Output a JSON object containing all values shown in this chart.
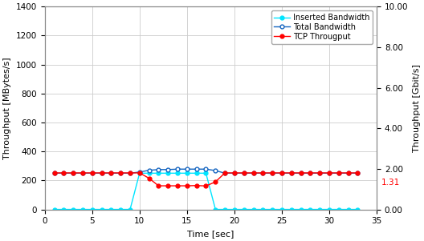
{
  "title": "",
  "xlabel": "Time [sec]",
  "ylabel_left": "Throughput [MBytes/s]",
  "ylabel_right": "Throughput [Gbit/s]",
  "xlim": [
    0,
    35
  ],
  "ylim_left": [
    0,
    1400
  ],
  "ylim_right": [
    0,
    10.0
  ],
  "yticks_left": [
    0,
    200,
    400,
    600,
    800,
    1000,
    1200,
    1400
  ],
  "yticks_right": [
    0.0,
    2.0,
    4.0,
    6.0,
    8.0,
    10.0
  ],
  "xticks": [
    0,
    5,
    10,
    15,
    20,
    25,
    30,
    35
  ],
  "annotation_value": "1.31",
  "annotation_color": "#ff0000",
  "inserted_bw_x": [
    1,
    2,
    3,
    4,
    5,
    6,
    7,
    8,
    9,
    10,
    11,
    12,
    13,
    14,
    15,
    16,
    17,
    18,
    19,
    20,
    21,
    22,
    23,
    24,
    25,
    26,
    27,
    28,
    29,
    30,
    31,
    32,
    33
  ],
  "inserted_bw_y": [
    0,
    0,
    0,
    0,
    0,
    0,
    0,
    0,
    0,
    250,
    250,
    250,
    250,
    250,
    250,
    250,
    250,
    0,
    0,
    0,
    0,
    0,
    0,
    0,
    0,
    0,
    0,
    0,
    0,
    0,
    0,
    0,
    0
  ],
  "total_bw_x": [
    1,
    2,
    3,
    4,
    5,
    6,
    7,
    8,
    9,
    10,
    11,
    12,
    13,
    14,
    15,
    16,
    17,
    18,
    19,
    20,
    21,
    22,
    23,
    24,
    25,
    26,
    27,
    28,
    29,
    30,
    31,
    32,
    33
  ],
  "total_bw_y": [
    250,
    250,
    250,
    250,
    250,
    250,
    250,
    250,
    250,
    258,
    270,
    275,
    275,
    278,
    278,
    278,
    278,
    268,
    250,
    250,
    250,
    250,
    250,
    250,
    250,
    250,
    250,
    250,
    250,
    250,
    250,
    250,
    250
  ],
  "tcp_x": [
    1,
    2,
    3,
    4,
    5,
    6,
    7,
    8,
    9,
    10,
    11,
    12,
    13,
    14,
    15,
    16,
    17,
    18,
    19,
    20,
    21,
    22,
    23,
    24,
    25,
    26,
    27,
    28,
    29,
    30,
    31,
    32,
    33
  ],
  "tcp_y": [
    252,
    252,
    252,
    252,
    252,
    252,
    252,
    252,
    252,
    252,
    215,
    163,
    163,
    163,
    163,
    165,
    162,
    190,
    252,
    252,
    252,
    252,
    252,
    252,
    252,
    252,
    252,
    252,
    252,
    252,
    252,
    252,
    252
  ],
  "inserted_color": "#00e5ff",
  "total_color": "#1565c0",
  "tcp_color": "#ff0000",
  "grid_color": "#cccccc",
  "bg_color": "#ffffff",
  "legend_labels": [
    "Inserted Bandwidth",
    "Total Bandwidth",
    "TCP Througput"
  ]
}
